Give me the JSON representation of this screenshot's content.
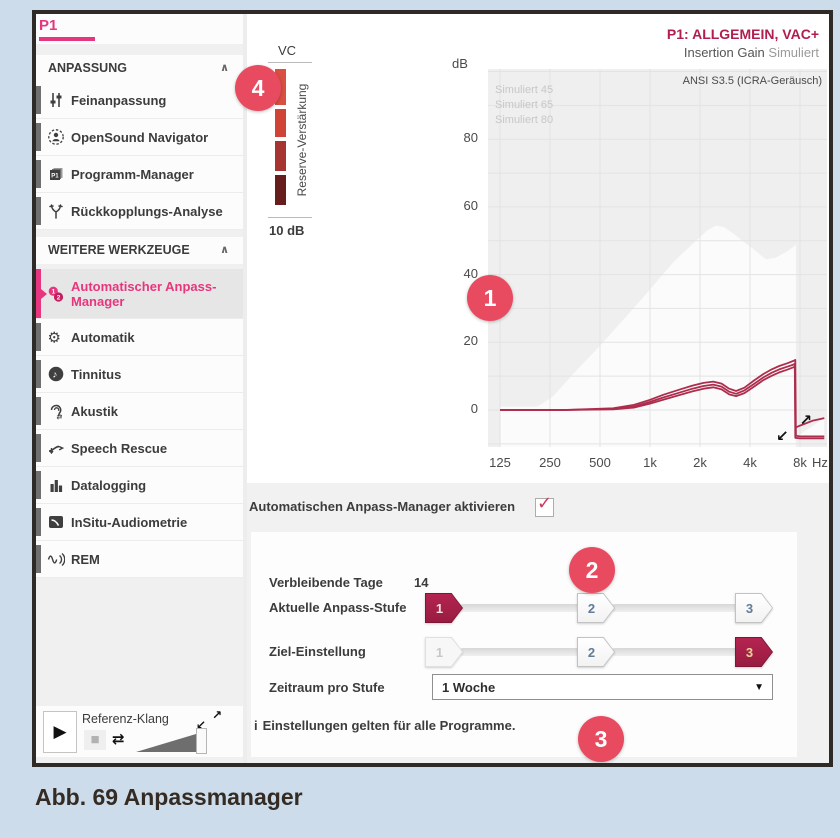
{
  "caption": "Abb. 69 Anpassmanager",
  "badges": {
    "b1": "1",
    "b2": "2",
    "b3": "3",
    "b4": "4"
  },
  "accent_pink": "#e6367e",
  "curve_crimson": "#ad2d4d",
  "sidebar": {
    "tab": "P1",
    "sections": [
      {
        "label": "ANPASSUNG",
        "chevron": "∧",
        "items": [
          {
            "id": "feinanpassung",
            "icon": "sliders-icon",
            "label": "Feinanpassung"
          },
          {
            "id": "opensound-navigator",
            "icon": "person-circle-icon",
            "label": "OpenSound Navigator"
          },
          {
            "id": "programm-manager",
            "icon": "programs-icon",
            "label": "Programm-Manager"
          },
          {
            "id": "rueckkopplungs-analyse",
            "icon": "feedback-icon",
            "label": "Rückkopplungs-Analyse"
          }
        ]
      },
      {
        "label": "WEITERE WERKZEUGE",
        "chevron": "∧",
        "items": [
          {
            "id": "automatischer-anpass-manager",
            "icon": "anpass-manager-icon",
            "label": "Automatischer Anpass-Manager",
            "label_lines": [
              "Automatischer Anpass-",
              "Manager"
            ],
            "selected": true
          },
          {
            "id": "automatik",
            "icon": "gear-icon",
            "label": "Automatik"
          },
          {
            "id": "tinnitus",
            "icon": "head-note-icon",
            "label": "Tinnitus"
          },
          {
            "id": "akustik",
            "icon": "ear-arrows-icon",
            "label": "Akustik"
          },
          {
            "id": "speech-rescue",
            "icon": "curve-arrow-icon",
            "label": "Speech Rescue"
          },
          {
            "id": "datalogging",
            "icon": "bar-chart-icon",
            "label": "Datalogging"
          },
          {
            "id": "insitu-audiometrie",
            "icon": "audiogram-icon",
            "label": "InSitu-Audiometrie"
          },
          {
            "id": "rem",
            "icon": "wave-ear-icon",
            "label": "REM"
          }
        ]
      }
    ],
    "player": {
      "label": "Referenz-Klang",
      "play": "▶",
      "stop": "■",
      "loop": "⇄",
      "expand_ne": "↗",
      "expand_sw": "↙"
    }
  },
  "vc": {
    "label": "VC",
    "axis_label": "Reserve-Verstärkung",
    "scale_label": "10 dB",
    "segments": [
      {
        "h": 36,
        "color": "#d94f41"
      },
      {
        "h": 28,
        "color": "#d04337"
      },
      {
        "h": 30,
        "color": "#a63531"
      },
      {
        "h": 30,
        "color": "#671d1b"
      }
    ]
  },
  "chart": {
    "subtitle_main": "Insertion Gain",
    "subtitle_tag": "Simuliert"
  },
  "chart_data": {
    "type": "line",
    "title": "P1: ALLGEMEIN, VAC+",
    "subtitle": "Insertion Gain Simuliert",
    "annotation": "ANSI S3.5 (ICRA-Geräusch)",
    "xlabel": "Hz",
    "ylabel": "dB",
    "x_scale": "log-frequency, one octave per gridline",
    "x_ticks": [
      {
        "label": "125",
        "f": 125
      },
      {
        "label": "250",
        "f": 250
      },
      {
        "label": "500",
        "f": 500
      },
      {
        "label": "1k",
        "f": 1000
      },
      {
        "label": "2k",
        "f": 2000
      },
      {
        "label": "4k",
        "f": 4000
      },
      {
        "label": "8k",
        "f": 8000
      }
    ],
    "y_ticks": [
      0,
      20,
      40,
      60,
      80
    ],
    "ylim": [
      -11,
      100
    ],
    "grid_step_db": 10,
    "legend": [
      "Simuliert 45",
      "Simuliert 65",
      "Simuliert 80"
    ],
    "legend_position": "top-left, faded",
    "region": {
      "name": "fitting-range-area",
      "color": "#fbfbfb",
      "close_db": -11,
      "points": [
        [
          125,
          1
        ],
        [
          210,
          1
        ],
        [
          260,
          4
        ],
        [
          350,
          11
        ],
        [
          500,
          19
        ],
        [
          700,
          27
        ],
        [
          900,
          33
        ],
        [
          1100,
          38
        ],
        [
          1400,
          44
        ],
        [
          1800,
          49
        ],
        [
          2200,
          53
        ],
        [
          2500,
          54.5
        ],
        [
          2800,
          54
        ],
        [
          3200,
          52
        ],
        [
          3600,
          50
        ],
        [
          4200,
          47.5
        ],
        [
          5000,
          44.5
        ],
        [
          5700,
          45
        ],
        [
          6500,
          46.5
        ],
        [
          7200,
          48
        ],
        [
          7560,
          48.8
        ]
      ]
    },
    "white_wedge": {
      "color": "#fbfbfb",
      "points": [
        [
          7560,
          -8
        ],
        [
          11200,
          -2.4
        ],
        [
          11200,
          -8.4
        ]
      ]
    },
    "series": [
      {
        "name": "Simuliert 45",
        "color": "#ad2d4d",
        "points": [
          [
            125,
            0
          ],
          [
            300,
            0
          ],
          [
            600,
            0.5
          ],
          [
            800,
            1.5
          ],
          [
            1000,
            3
          ],
          [
            1200,
            4.5
          ],
          [
            1500,
            6
          ],
          [
            1800,
            7.2
          ],
          [
            2100,
            8
          ],
          [
            2400,
            8.4
          ],
          [
            2700,
            7.8
          ],
          [
            3000,
            6.3
          ],
          [
            3300,
            5.6
          ],
          [
            3700,
            6.6
          ],
          [
            4200,
            8.6
          ],
          [
            4800,
            10.6
          ],
          [
            5400,
            12
          ],
          [
            6000,
            13
          ],
          [
            6700,
            13.8
          ],
          [
            7300,
            14.5
          ],
          [
            7500,
            14.8
          ],
          [
            7560,
            -7.6
          ],
          [
            8000,
            -7.8
          ],
          [
            11200,
            -7.8
          ]
        ]
      },
      {
        "name": "Simuliert 65",
        "color": "#ad2d4d",
        "points": [
          [
            125,
            0
          ],
          [
            300,
            0
          ],
          [
            600,
            0.3
          ],
          [
            800,
            1
          ],
          [
            1000,
            2.4
          ],
          [
            1200,
            3.7
          ],
          [
            1500,
            5.1
          ],
          [
            1800,
            6.3
          ],
          [
            2100,
            7.1
          ],
          [
            2400,
            7.5
          ],
          [
            2700,
            6.9
          ],
          [
            3000,
            5.4
          ],
          [
            3300,
            4.8
          ],
          [
            3700,
            5.8
          ],
          [
            4200,
            7.6
          ],
          [
            4800,
            9.6
          ],
          [
            5400,
            11
          ],
          [
            6000,
            12
          ],
          [
            6700,
            12.8
          ],
          [
            7300,
            13.4
          ],
          [
            7450,
            13.7
          ],
          [
            7520,
            -5.2
          ],
          [
            8000,
            -4.6
          ],
          [
            9500,
            -3.2
          ],
          [
            11200,
            -2.4
          ]
        ]
      },
      {
        "name": "Simuliert 80",
        "color": "#ad2d4d",
        "points": [
          [
            125,
            0
          ],
          [
            300,
            0
          ],
          [
            600,
            0.2
          ],
          [
            800,
            0.7
          ],
          [
            1000,
            1.9
          ],
          [
            1200,
            3
          ],
          [
            1500,
            4.4
          ],
          [
            1800,
            5.5
          ],
          [
            2100,
            6.3
          ],
          [
            2400,
            6.7
          ],
          [
            2700,
            6.1
          ],
          [
            3000,
            4.6
          ],
          [
            3300,
            4.1
          ],
          [
            3700,
            5
          ],
          [
            4200,
            6.8
          ],
          [
            4800,
            8.8
          ],
          [
            5400,
            10.1
          ],
          [
            6000,
            11.1
          ],
          [
            6700,
            11.9
          ],
          [
            7300,
            12.6
          ],
          [
            7440,
            12.9
          ],
          [
            7500,
            -8.2
          ],
          [
            8000,
            -8.4
          ],
          [
            11200,
            -8.4
          ]
        ]
      }
    ]
  },
  "form": {
    "checkbox": {
      "label": "Automatischen Anpass-Manager aktivieren",
      "checked": true,
      "check_glyph": "✓"
    },
    "remaining_days": {
      "label": "Verbleibende Tage",
      "value": "14"
    },
    "sliders": [
      {
        "id": "aktuelle-anpass-stufe",
        "label": "Aktuelle Anpass-Stufe",
        "steps": [
          {
            "n": "1",
            "state": "active",
            "num_color": "#f5dede"
          },
          {
            "n": "2",
            "state": "normal",
            "num_color": "#5f7d99"
          },
          {
            "n": "3",
            "state": "normal",
            "num_color": "#5f7d99"
          }
        ]
      },
      {
        "id": "ziel-einstellung",
        "label": "Ziel-Einstellung",
        "steps": [
          {
            "n": "1",
            "state": "disabled",
            "num_color": "#c8c8c8"
          },
          {
            "n": "2",
            "state": "normal",
            "num_color": "#5f7d99"
          },
          {
            "n": "3",
            "state": "active",
            "num_color": "#e9d498"
          }
        ]
      }
    ],
    "period": {
      "label": "Zeitraum pro Stufe",
      "value": "1 Woche",
      "arrow": "▼"
    },
    "info": "Einstellungen gelten für alle Programme.",
    "info_icon": "i"
  }
}
